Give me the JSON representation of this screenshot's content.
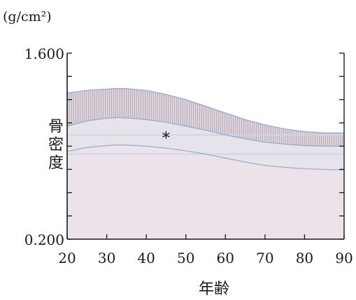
{
  "chart_data": {
    "type": "area",
    "title": "",
    "unit_label": "(g/cm²)",
    "ylabel": "骨密度",
    "xlabel": "年齢",
    "xlim": [
      20,
      90
    ],
    "ylim": [
      0.2,
      1.6
    ],
    "x_ticks": [
      20,
      30,
      40,
      50,
      60,
      70,
      80,
      90
    ],
    "y_tick_labels": [
      "1.600",
      "0.200"
    ],
    "y_tick_values": [
      1.6,
      0.2
    ],
    "annotation": "*",
    "annotation_x": 45,
    "annotation_y": 0.97,
    "grid": false,
    "x": [
      20,
      25,
      30,
      33,
      35,
      40,
      45,
      50,
      55,
      60,
      65,
      70,
      75,
      80,
      85,
      90
    ],
    "series": [
      {
        "values": [
          1.3,
          1.32,
          1.33,
          1.335,
          1.333,
          1.32,
          1.29,
          1.25,
          1.2,
          1.15,
          1.1,
          1.06,
          1.03,
          1.01,
          1.0,
          1.0
        ]
      },
      {
        "values": [
          1.05,
          1.09,
          1.11,
          1.115,
          1.112,
          1.1,
          1.08,
          1.05,
          1.02,
          0.985,
          0.955,
          0.93,
          0.915,
          0.905,
          0.9,
          0.9
        ]
      },
      {
        "values": [
          0.86,
          0.89,
          0.905,
          0.91,
          0.908,
          0.9,
          0.885,
          0.865,
          0.84,
          0.81,
          0.78,
          0.755,
          0.74,
          0.73,
          0.725,
          0.72
        ]
      }
    ],
    "reference_lines": [
      0.985,
      0.84
    ],
    "colors": {
      "upper_band": "#cfc5d0",
      "upper_band_stripes": "#b9aeb9",
      "middle_band": "#e6e4ea",
      "lower_region": "#ece3ea",
      "curve": "#8aa0c4",
      "reference_line": "#cfd6e4",
      "axis": "#1a1a1a"
    }
  }
}
